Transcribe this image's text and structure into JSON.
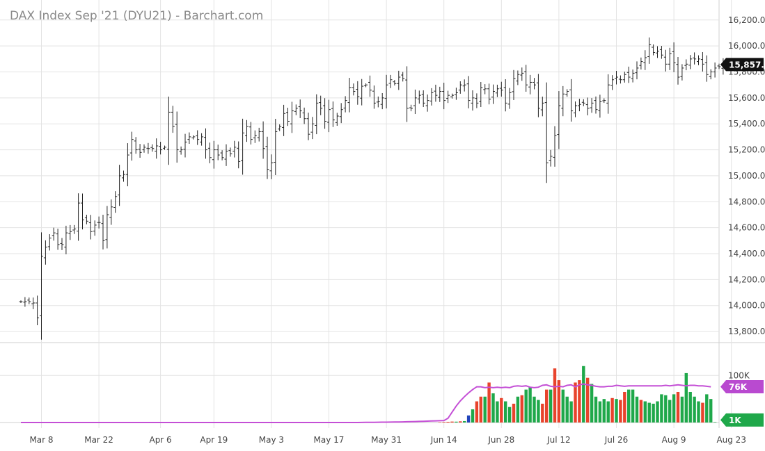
{
  "title": "DAX Index Sep '21 (DYU21) - Barchart.com",
  "colors": {
    "up": "#1fa84a",
    "down": "#e8432c",
    "flat": "#2244bb",
    "ma": "#c44fd6",
    "grid": "#e3e3e3",
    "bar": "#222222",
    "last_badge": "#111111",
    "ma_badge": "#b94ad0",
    "min_badge": "#1fa84a"
  },
  "badges": {
    "last_price": "15,857.0",
    "volume_ma": "76K",
    "volume_last": "1K"
  },
  "chart_data": [
    {
      "type": "ohlc",
      "title": "DAX Index Sep '21 (DYU21) - Barchart.com",
      "x_tick_labels": [
        "Mar 8",
        "Mar 22",
        "Apr 6",
        "Apr 19",
        "May 3",
        "May 17",
        "May 31",
        "Jun 14",
        "Jun 28",
        "Jul 12",
        "Jul 26",
        "Aug 9",
        "Aug 23"
      ],
      "x_tick_index": [
        5,
        19,
        34,
        47,
        61,
        75,
        89,
        103,
        117,
        131,
        145,
        159,
        173
      ],
      "y_ticks": [
        13800,
        14000,
        14200,
        14400,
        14600,
        14800,
        15000,
        15200,
        15400,
        15600,
        15800,
        16000,
        16200
      ],
      "y_tick_labels": [
        "13,800.0",
        "14,000.0",
        "14,200.0",
        "14,400.0",
        "14,600.0",
        "14,800.0",
        "15,000.0",
        "15,200.0",
        "15,400.0",
        "15,600.0",
        "15,800.0",
        "16,000.0",
        "16,200.0"
      ],
      "ylim": [
        13720,
        16290
      ],
      "last": 15857.0,
      "closes": [
        14030,
        14030,
        14030,
        14020,
        13905,
        14380,
        14450,
        14520,
        14560,
        14470,
        14470,
        14560,
        14570,
        14590,
        14790,
        14660,
        14650,
        14570,
        14620,
        14640,
        14500,
        14700,
        14760,
        14840,
        15000,
        15010,
        15160,
        15280,
        15200,
        15180,
        15220,
        15210,
        15210,
        15230,
        15200,
        15220,
        15490,
        15380,
        15200,
        15200,
        15260,
        15300,
        15300,
        15280,
        15300,
        15200,
        15140,
        15200,
        15160,
        15140,
        15190,
        15170,
        15220,
        15110,
        15330,
        15380,
        15280,
        15310,
        15340,
        15210,
        15050,
        15100,
        15340,
        15380,
        15480,
        15420,
        15500,
        15520,
        15500,
        15440,
        15320,
        15400,
        15560,
        15520,
        15420,
        15510,
        15430,
        15460,
        15510,
        15580,
        15680,
        15650,
        15610,
        15690,
        15700,
        15660,
        15560,
        15570,
        15600,
        15700,
        15740,
        15710,
        15760,
        15750,
        15520,
        15520,
        15600,
        15620,
        15560,
        15580,
        15640,
        15620,
        15650,
        15580,
        15620,
        15620,
        15640,
        15700,
        15700,
        15580,
        15600,
        15560,
        15680,
        15670,
        15590,
        15650,
        15670,
        15660,
        15560,
        15640,
        15750,
        15780,
        15790,
        15700,
        15720,
        15700,
        15520,
        15560,
        15100,
        15150,
        15310,
        15540,
        15630,
        15650,
        15500,
        15540,
        15550,
        15560,
        15520,
        15560,
        15510,
        15570,
        15580,
        15700,
        15740,
        15760,
        15740,
        15780,
        15760,
        15790,
        15830,
        15880,
        15910,
        16010,
        15950,
        15960,
        15930,
        15860,
        15940,
        15870,
        15760,
        15830,
        15860,
        15900,
        15900,
        15900,
        15860,
        15780,
        15800,
        15830,
        15840,
        15857
      ]
    },
    {
      "type": "bar",
      "name": "Volume",
      "y_ticks": [
        100000
      ],
      "y_tick_labels": [
        "100K"
      ],
      "ylim": [
        0,
        130000
      ],
      "ma_last": 76000,
      "last": 1000,
      "values": [
        0,
        0,
        0,
        0,
        0,
        0,
        0,
        0,
        0,
        0,
        0,
        0,
        0,
        0,
        0,
        0,
        0,
        0,
        0,
        0,
        0,
        0,
        0,
        0,
        0,
        0,
        0,
        0,
        0,
        0,
        0,
        0,
        0,
        0,
        0,
        0,
        0,
        0,
        0,
        0,
        0,
        0,
        0,
        0,
        0,
        0,
        0,
        0,
        0,
        0,
        0,
        0,
        0,
        0,
        0,
        0,
        0,
        0,
        0,
        0,
        0,
        0,
        0,
        0,
        0,
        0,
        0,
        0,
        0,
        0,
        0,
        0,
        0,
        0,
        0,
        0,
        0,
        0,
        0,
        0,
        0,
        0,
        0,
        0,
        0,
        0,
        0,
        0,
        0,
        0,
        0,
        0,
        0,
        0,
        0,
        0,
        0,
        0,
        0,
        0,
        0,
        0,
        800,
        1200,
        1500,
        2000,
        1800,
        2500,
        3000,
        15000,
        28000,
        45000,
        55000,
        55000,
        85000,
        62000,
        45000,
        52000,
        45000,
        33000,
        40000,
        55000,
        58000,
        70000,
        75000,
        55000,
        48000,
        40000,
        70000,
        70000,
        115000,
        90000,
        70000,
        55000,
        45000,
        85000,
        90000,
        120000,
        95000,
        82000,
        55000,
        45000,
        50000,
        45000,
        52000,
        50000,
        48000,
        65000,
        70000,
        70000,
        55000,
        48000,
        45000,
        42000,
        40000,
        45000,
        60000,
        58000,
        48000,
        60000,
        65000,
        55000,
        105000,
        65000,
        55000,
        45000,
        42000,
        60000,
        50000,
        1000
      ],
      "colors": [
        "flat",
        "flat",
        "flat",
        "flat",
        "flat",
        "flat",
        "flat",
        "flat",
        "flat",
        "flat",
        "flat",
        "flat",
        "flat",
        "flat",
        "flat",
        "flat",
        "flat",
        "flat",
        "flat",
        "flat",
        "flat",
        "flat",
        "flat",
        "flat",
        "flat",
        "flat",
        "flat",
        "flat",
        "flat",
        "flat",
        "flat",
        "flat",
        "flat",
        "flat",
        "flat",
        "flat",
        "flat",
        "flat",
        "flat",
        "flat",
        "flat",
        "flat",
        "flat",
        "flat",
        "flat",
        "flat",
        "flat",
        "flat",
        "flat",
        "flat",
        "flat",
        "flat",
        "flat",
        "flat",
        "flat",
        "flat",
        "flat",
        "flat",
        "flat",
        "flat",
        "flat",
        "flat",
        "flat",
        "flat",
        "flat",
        "flat",
        "flat",
        "flat",
        "flat",
        "flat",
        "flat",
        "flat",
        "flat",
        "flat",
        "flat",
        "flat",
        "flat",
        "flat",
        "flat",
        "flat",
        "flat",
        "flat",
        "flat",
        "flat",
        "flat",
        "flat",
        "flat",
        "flat",
        "flat",
        "flat",
        "flat",
        "flat",
        "flat",
        "flat",
        "flat",
        "flat",
        "flat",
        "flat",
        "flat",
        "flat",
        "flat",
        "flat",
        "down",
        "down",
        "down",
        "down",
        "up",
        "down",
        "up",
        "flat",
        "up",
        "down",
        "down",
        "up",
        "down",
        "up",
        "up",
        "down",
        "up",
        "up",
        "down",
        "up",
        "down",
        "up",
        "up",
        "up",
        "up",
        "down",
        "down",
        "up",
        "down",
        "down",
        "up",
        "up",
        "up",
        "down",
        "down",
        "up",
        "down",
        "up",
        "up",
        "up",
        "up",
        "up",
        "down",
        "up",
        "down",
        "down",
        "up",
        "up",
        "up",
        "down",
        "up",
        "up",
        "up",
        "up",
        "up",
        "up",
        "up",
        "up",
        "down",
        "up",
        "up",
        "up",
        "up",
        "up",
        "down",
        "up",
        "up",
        "up"
      ],
      "ma": [
        0,
        0,
        0,
        0,
        0,
        0,
        0,
        0,
        0,
        0,
        0,
        0,
        0,
        0,
        0,
        0,
        0,
        0,
        0,
        0,
        0,
        0,
        0,
        0,
        0,
        0,
        0,
        0,
        0,
        0,
        0,
        0,
        0,
        0,
        0,
        0,
        0,
        0,
        0,
        0,
        0,
        0,
        0,
        0,
        0,
        0,
        0,
        0,
        0,
        0,
        0,
        0,
        0,
        0,
        0,
        0,
        0,
        0,
        0,
        0,
        0,
        0,
        0,
        0,
        0,
        0,
        0,
        0,
        0,
        0,
        0,
        0,
        0,
        0,
        0,
        0,
        0,
        0,
        0,
        0,
        0,
        0,
        0,
        200,
        300,
        400,
        500,
        600,
        700,
        800,
        900,
        1000,
        1200,
        1400,
        1600,
        1800,
        2000,
        2300,
        2600,
        2900,
        3200,
        3500,
        3800,
        4200,
        9000,
        22000,
        35000,
        46000,
        55000,
        63000,
        70000,
        76000,
        76000,
        74000,
        75000,
        74000,
        75000,
        74000,
        75000,
        74000,
        77000,
        78000,
        77000,
        78000,
        75000,
        74000,
        75000,
        79000,
        80000,
        77000,
        76000,
        77000,
        76000,
        79000,
        80000,
        76000,
        80000,
        82000,
        80000,
        79000,
        77000,
        76000,
        76000,
        77000,
        77000,
        79000,
        78000,
        77000,
        78000,
        78000,
        78000,
        78000,
        78000,
        78000,
        78000,
        78000,
        78000,
        79000,
        78000,
        79000,
        80000,
        79000,
        78000,
        79000,
        79000,
        78000,
        78000,
        77000,
        76000
      ]
    }
  ]
}
